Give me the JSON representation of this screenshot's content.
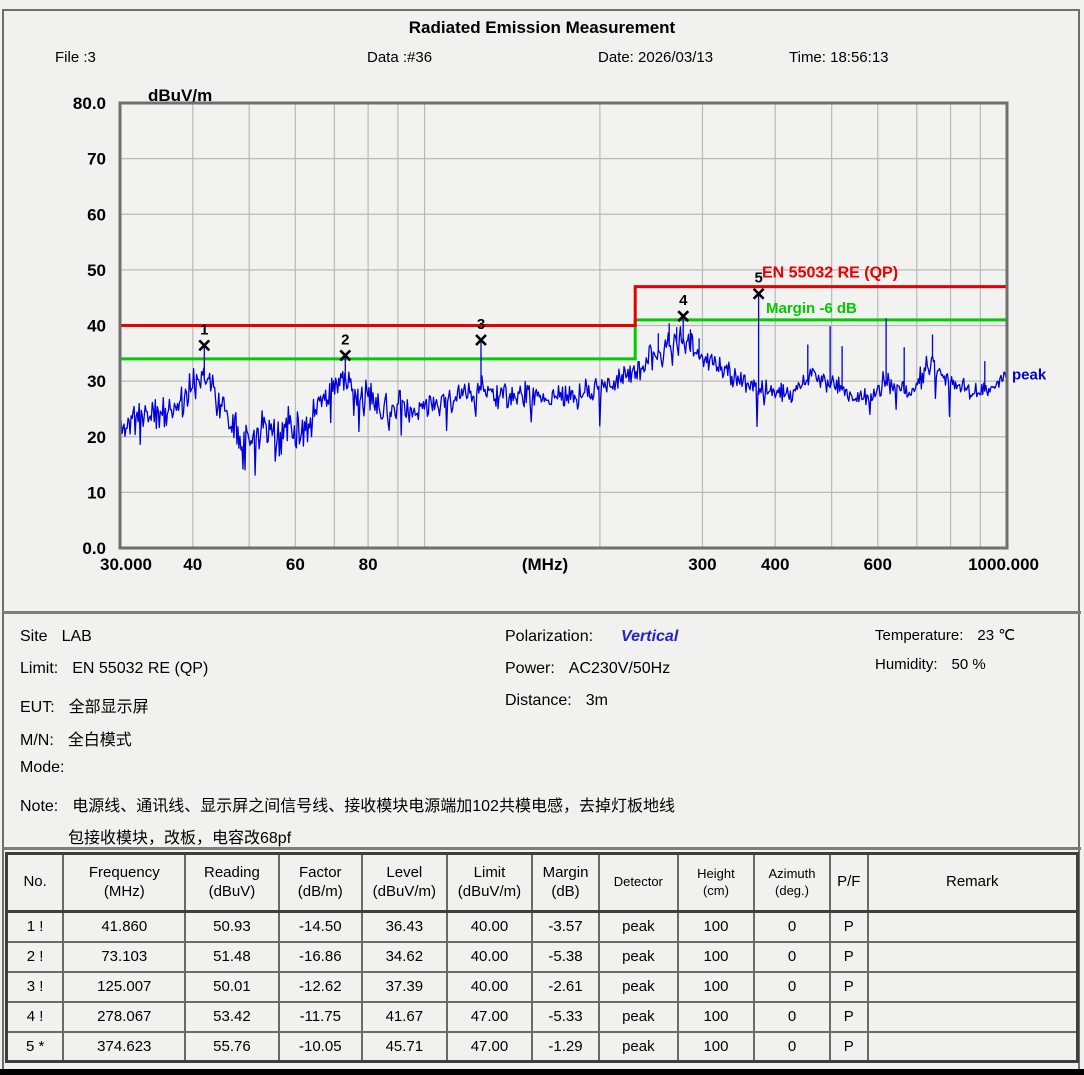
{
  "header": {
    "title": "Radiated Emission Measurement",
    "file": "File :3",
    "data_no": "Data :#36",
    "date": "Date: 2026/03/13",
    "time": "Time: 18:56:13"
  },
  "chart_data": {
    "type": "line",
    "title": "Radiated Emission Measurement",
    "xlabel": "(MHz)",
    "ylabel": "dBuV/m",
    "xlim": [
      30,
      1000
    ],
    "ylim": [
      0,
      80
    ],
    "x_axis": {
      "min": 30,
      "max": 1000,
      "scale": "log",
      "unit_label": "(MHz)",
      "gridlines": [
        40,
        50,
        60,
        70,
        80,
        90,
        100,
        200,
        300,
        400,
        500,
        600,
        700,
        800,
        900
      ],
      "tick_labels": [
        {
          "f": 30,
          "label": "30.000"
        },
        {
          "f": 40,
          "label": "40"
        },
        {
          "f": 60,
          "label": "60"
        },
        {
          "f": 80,
          "label": "80"
        },
        {
          "f": 300,
          "label": "300"
        },
        {
          "f": 400,
          "label": "400"
        },
        {
          "f": 600,
          "label": "600"
        },
        {
          "f": 1000,
          "label": "1000.000"
        }
      ]
    },
    "y_axis": {
      "min": 0,
      "max": 80,
      "unit_label": "dBuV/m",
      "gridlines": [
        10,
        20,
        30,
        40,
        50,
        60,
        70
      ],
      "tick_labels": [
        {
          "v": 80,
          "label": "80.0"
        },
        {
          "v": 70,
          "label": "70"
        },
        {
          "v": 60,
          "label": "60"
        },
        {
          "v": 50,
          "label": "50"
        },
        {
          "v": 40,
          "label": "40"
        },
        {
          "v": 30,
          "label": "30"
        },
        {
          "v": 20,
          "label": "20"
        },
        {
          "v": 10,
          "label": "10"
        },
        {
          "v": 0,
          "label": "0.0"
        }
      ]
    },
    "limit_line": {
      "label": "EN 55032 RE (QP)",
      "color": "#e60000",
      "points": [
        [
          30,
          40
        ],
        [
          230,
          40
        ],
        [
          230,
          47
        ],
        [
          1000,
          47
        ]
      ]
    },
    "margin_line": {
      "label": "Margin -6 dB",
      "color": "#00cc00",
      "points": [
        [
          30,
          34
        ],
        [
          230,
          34
        ],
        [
          230,
          41
        ],
        [
          1000,
          41
        ]
      ]
    },
    "trace": {
      "label": "peak",
      "color": "#0000dd",
      "noise_seed": 11,
      "samples": 880,
      "envelope": [
        [
          30,
          21.5,
          3
        ],
        [
          33,
          24.5,
          3.5
        ],
        [
          36,
          24,
          4
        ],
        [
          39,
          27.5,
          4
        ],
        [
          41.8,
          31,
          3
        ],
        [
          44,
          27,
          3.5
        ],
        [
          47,
          22.5,
          4
        ],
        [
          50,
          19,
          4.5
        ],
        [
          53,
          23.5,
          4.5
        ],
        [
          56,
          18.5,
          4.5
        ],
        [
          59,
          23.5,
          4
        ],
        [
          62,
          20,
          4.5
        ],
        [
          65,
          25,
          3.5
        ],
        [
          69,
          28.5,
          3
        ],
        [
          73,
          30.5,
          2.5
        ],
        [
          77,
          26.5,
          3
        ],
        [
          81,
          27.5,
          3.5
        ],
        [
          86,
          25,
          3.5
        ],
        [
          91,
          26,
          3
        ],
        [
          96,
          23.5,
          3
        ],
        [
          102,
          26,
          3
        ],
        [
          110,
          26.5,
          3
        ],
        [
          118,
          27,
          3
        ],
        [
          125,
          29,
          3
        ],
        [
          132,
          27.5,
          3
        ],
        [
          142,
          27,
          2.5
        ],
        [
          152,
          28,
          2.5
        ],
        [
          162,
          26.5,
          2.5
        ],
        [
          172,
          27.5,
          2.5
        ],
        [
          182,
          27,
          2.5
        ],
        [
          192,
          28,
          2.5
        ],
        [
          205,
          29,
          2.5
        ],
        [
          218,
          30.5,
          2.5
        ],
        [
          232,
          32.5,
          2.5
        ],
        [
          246,
          34,
          3
        ],
        [
          258,
          35.5,
          3
        ],
        [
          270,
          37,
          3
        ],
        [
          280,
          37.5,
          3
        ],
        [
          292,
          35.5,
          3
        ],
        [
          310,
          33.5,
          2.5
        ],
        [
          330,
          31.5,
          2.5
        ],
        [
          352,
          29.5,
          2
        ],
        [
          375,
          29,
          2
        ],
        [
          400,
          28,
          2
        ],
        [
          425,
          27.5,
          2
        ],
        [
          445,
          29,
          2.5
        ],
        [
          462,
          31,
          2.5
        ],
        [
          482,
          30.5,
          2.5
        ],
        [
          500,
          29.5,
          2.5
        ],
        [
          522,
          28.5,
          2
        ],
        [
          545,
          27.5,
          2
        ],
        [
          568,
          27,
          2
        ],
        [
          590,
          27.5,
          2
        ],
        [
          612,
          29.5,
          2.5
        ],
        [
          628,
          29.5,
          2.5
        ],
        [
          645,
          28.5,
          2
        ],
        [
          665,
          28,
          2
        ],
        [
          685,
          28.5,
          2
        ],
        [
          705,
          30,
          2.5
        ],
        [
          725,
          32.5,
          2.5
        ],
        [
          742,
          33.5,
          2.5
        ],
        [
          762,
          32,
          2.5
        ],
        [
          782,
          30.5,
          2
        ],
        [
          805,
          29.5,
          2
        ],
        [
          835,
          29,
          2
        ],
        [
          865,
          28.5,
          2
        ],
        [
          900,
          28,
          1.8
        ],
        [
          935,
          28.5,
          1.6
        ],
        [
          965,
          29.5,
          1.5
        ],
        [
          1000,
          31,
          1.5
        ]
      ],
      "spikes": [
        [
          41.86,
          36.2
        ],
        [
          73.103,
          34.4
        ],
        [
          125.007,
          37.2
        ],
        [
          252,
          38.5
        ],
        [
          263,
          40.3
        ],
        [
          271,
          39.6
        ],
        [
          278.067,
          41.5
        ],
        [
          286,
          39.2
        ],
        [
          296,
          37.6
        ],
        [
          374.623,
          45.71
        ],
        [
          455,
          36.5
        ],
        [
          497,
          39.8
        ],
        [
          521,
          36.2
        ],
        [
          620,
          41.2
        ],
        [
          666,
          36.0
        ],
        [
          745,
          38.3
        ],
        [
          916,
          33.5
        ]
      ]
    },
    "markers": [
      {
        "no": "1",
        "freq": 41.86,
        "level": 36.43
      },
      {
        "no": "2",
        "freq": 73.103,
        "level": 34.62
      },
      {
        "no": "3",
        "freq": 125.007,
        "level": 37.39
      },
      {
        "no": "4",
        "freq": 278.067,
        "level": 41.67
      },
      {
        "no": "5",
        "freq": 374.623,
        "level": 45.71
      }
    ]
  },
  "info": {
    "site_label": "Site",
    "site_value": "LAB",
    "limit_label": "Limit:",
    "limit_value": "EN 55032 RE (QP)",
    "eut_label": "EUT:",
    "eut_value": "全部显示屏",
    "mn_label": "M/N:",
    "mn_value": "全白模式",
    "mode_label": "Mode:",
    "mode_value": "",
    "note_label": "Note:",
    "note_line1": "电源线、通讯线、显示屏之间信号线、接收模块电源端加102共模电感，去掉灯板地线",
    "note_line2": "包接收模块，改板，电容改68pf",
    "polarization_label": "Polarization:",
    "polarization_value": "Vertical",
    "power_label": "Power:",
    "power_value": "AC230V/50Hz",
    "distance_label": "Distance:",
    "distance_value": "3m",
    "temperature_label": "Temperature:",
    "temperature_value": "23 ℃",
    "humidity_label": "Humidity:",
    "humidity_value": "50 %"
  },
  "table": {
    "columns": [
      {
        "line1": "No.",
        "line2": ""
      },
      {
        "line1": "Frequency",
        "line2": "(MHz)"
      },
      {
        "line1": "Reading",
        "line2": "(dBuV)"
      },
      {
        "line1": "Factor",
        "line2": "(dB/m)"
      },
      {
        "line1": "Level",
        "line2": "(dBuV/m)"
      },
      {
        "line1": "Limit",
        "line2": "(dBuV/m)"
      },
      {
        "line1": "Margin",
        "line2": "(dB)"
      },
      {
        "line1": "Detector",
        "line2": ""
      },
      {
        "line1": "Height",
        "line2": "(cm)"
      },
      {
        "line1": "Azimuth",
        "line2": "(deg.)"
      },
      {
        "line1": "P/F",
        "line2": ""
      },
      {
        "line1": "Remark",
        "line2": ""
      }
    ],
    "rows": [
      [
        "1 !",
        "41.860",
        "50.93",
        "-14.50",
        "36.43",
        "40.00",
        "-3.57",
        "peak",
        "100",
        "0",
        "P",
        ""
      ],
      [
        "2 !",
        "73.103",
        "51.48",
        "-16.86",
        "34.62",
        "40.00",
        "-5.38",
        "peak",
        "100",
        "0",
        "P",
        ""
      ],
      [
        "3 !",
        "125.007",
        "50.01",
        "-12.62",
        "37.39",
        "40.00",
        "-2.61",
        "peak",
        "100",
        "0",
        "P",
        ""
      ],
      [
        "4 !",
        "278.067",
        "53.42",
        "-11.75",
        "41.67",
        "47.00",
        "-5.33",
        "peak",
        "100",
        "0",
        "P",
        ""
      ],
      [
        "5 *",
        "374.623",
        "55.76",
        "-10.05",
        "45.71",
        "47.00",
        "-1.29",
        "peak",
        "100",
        "0",
        "P",
        ""
      ]
    ]
  }
}
